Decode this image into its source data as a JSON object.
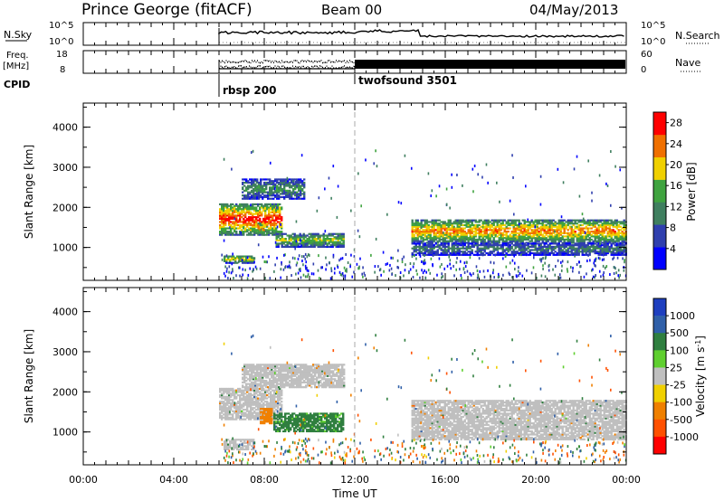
{
  "header": {
    "station": "Prince George (fitACF)",
    "beam": "Beam 00",
    "date": "04/May/2013"
  },
  "top_panels": {
    "nsky_label": "N.Sky",
    "nsky_ticks": [
      "10^5",
      "10^0"
    ],
    "nsearch_label": "N.Search",
    "freq_label_line1": "Freq.",
    "freq_label_line2": "[MHz]",
    "freq_ticks": [
      "18",
      "8"
    ],
    "nave_label": "Nave",
    "nave_ticks": [
      "60",
      "0"
    ],
    "cpid_label": "CPID",
    "cpid_modes": [
      {
        "name": "rbsp 200",
        "start_hour": 6.0
      },
      {
        "name": "twofsound 3501",
        "start_hour": 12.0
      }
    ]
  },
  "colors": {
    "power_scale": [
      "#0000ff",
      "#2f3fae",
      "#3f7f5f",
      "#3fa33f",
      "#f0d000",
      "#f07000",
      "#ff0000"
    ],
    "velocity_scale": [
      "#1e3fbf",
      "#2f5fa8",
      "#2f7f3f",
      "#5fcf2f",
      "#bfbfbf",
      "#f0d000",
      "#f08000",
      "#ff5000",
      "#ff0000"
    ],
    "ground_scatter": "#bfbfbf"
  },
  "chart_data": [
    {
      "type": "heatmap",
      "name": "power",
      "xlabel": "",
      "ylabel": "Slant Range [km]",
      "xlim": [
        0,
        24
      ],
      "ylim": [
        180,
        4600
      ],
      "yticks": [
        "1000",
        "2000",
        "3000",
        "4000"
      ],
      "colorbar_label": "Power [dB]",
      "colorbar_ticks": [
        "4",
        "8",
        "12",
        "16",
        "20",
        "24",
        "28"
      ],
      "colorbar_range": [
        0,
        30
      ],
      "regions": [
        {
          "t": [
            6.0,
            8.8
          ],
          "r0": 1300,
          "r1": 2100,
          "p": 26
        },
        {
          "t": [
            7.0,
            9.8
          ],
          "r0": 2200,
          "r1": 2700,
          "p": 12
        },
        {
          "t": [
            8.5,
            11.5
          ],
          "r0": 1000,
          "r1": 1350,
          "p": 16
        },
        {
          "t": [
            6.2,
            7.5
          ],
          "r0": 600,
          "r1": 800,
          "p": 18
        },
        {
          "t": [
            7.7,
            8.0
          ],
          "r0": 1300,
          "r1": 1600,
          "p": 24
        },
        {
          "t": [
            14.5,
            24.0
          ],
          "r0": 1100,
          "r1": 1700,
          "p": 22
        },
        {
          "t": [
            14.5,
            24.0
          ],
          "r0": 800,
          "r1": 1100,
          "p": 10
        }
      ]
    },
    {
      "type": "heatmap",
      "name": "velocity",
      "xlabel": "Time UT",
      "ylabel": "Slant Range [km]",
      "xlim": [
        0,
        24
      ],
      "ylim": [
        180,
        4600
      ],
      "xticks": [
        "00:00",
        "04:00",
        "08:00",
        "12:00",
        "16:00",
        "20:00",
        "00:00"
      ],
      "yticks": [
        "1000",
        "2000",
        "3000",
        "4000"
      ],
      "colorbar_label": "Velocity [m s^-1]",
      "colorbar_ticks": [
        "1000",
        "500",
        "100",
        "25",
        "-25",
        "-100",
        "-500",
        "-1000"
      ],
      "regions": [
        {
          "t": [
            6.0,
            8.8
          ],
          "r0": 1300,
          "r1": 2100,
          "v": 0
        },
        {
          "t": [
            7.0,
            11.5
          ],
          "r0": 2100,
          "r1": 2700,
          "v": 0
        },
        {
          "t": [
            7.8,
            8.3
          ],
          "r0": 1200,
          "r1": 1600,
          "v": -300
        },
        {
          "t": [
            8.4,
            11.5
          ],
          "r0": 1000,
          "r1": 1450,
          "v": 150
        },
        {
          "t": [
            6.2,
            7.5
          ],
          "r0": 550,
          "r1": 800,
          "v": 0
        },
        {
          "t": [
            14.5,
            24.0
          ],
          "r0": 800,
          "r1": 1800,
          "v": 0
        }
      ]
    }
  ]
}
